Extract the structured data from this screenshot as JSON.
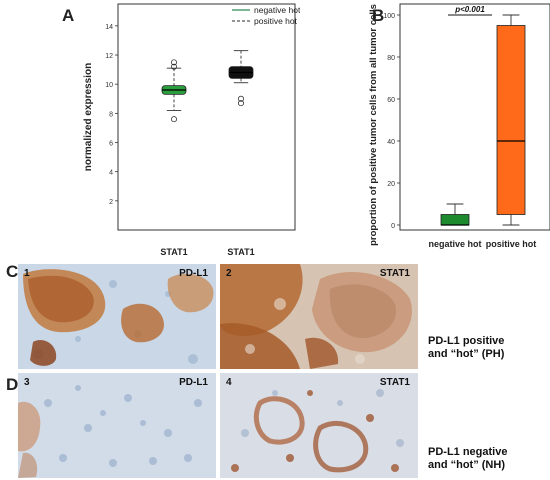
{
  "panels": {
    "a": {
      "letter": "A"
    },
    "b": {
      "letter": "B"
    },
    "c": {
      "letter": "C"
    },
    "d": {
      "letter": "D"
    }
  },
  "chart_data": [
    {
      "type": "box",
      "panel": "A",
      "ylabel": "normalized expression",
      "ylim": [
        0,
        15.5
      ],
      "yticks": [
        2,
        4,
        6,
        8,
        10,
        12,
        14
      ],
      "categories": [
        "STAT1",
        "STAT1"
      ],
      "legend": {
        "placement": "top-right",
        "entries": [
          {
            "name": "negative hot",
            "color": "#2e8b57",
            "style": "solid"
          },
          {
            "name": "positive hot",
            "color": "#555555",
            "style": "dashed"
          }
        ]
      },
      "boxes": [
        {
          "category": "STAT1",
          "color": "#2a9d3c",
          "whisker_low": 8.2,
          "q1": 9.3,
          "median": 9.6,
          "q3": 9.9,
          "whisker_high": 11.1,
          "outliers": [
            7.6,
            11.2,
            11.5
          ]
        },
        {
          "category": "STAT1",
          "color": "#111111",
          "whisker_low": 10.1,
          "q1": 10.4,
          "median": 10.8,
          "q3": 11.2,
          "whisker_high": 12.3,
          "outliers": [
            8.7,
            9.0
          ]
        }
      ]
    },
    {
      "type": "box",
      "panel": "B",
      "ylabel": "proportion  of positive tumor cells from all tumor cells",
      "ylim": [
        0,
        100
      ],
      "yticks": [
        0,
        20,
        40,
        60,
        80,
        100
      ],
      "categories": [
        "negative hot",
        "positive hot"
      ],
      "annotation": "p<0.001",
      "boxes": [
        {
          "category": "negative hot",
          "color": "#1d8a2e",
          "whisker_low": 0,
          "q1": 0,
          "median": 0,
          "q3": 5,
          "whisker_high": 10
        },
        {
          "category": "positive hot",
          "color": "#ff6a1a",
          "whisker_low": 0,
          "q1": 5,
          "median": 40,
          "q3": 95,
          "whisker_high": 100
        }
      ]
    }
  ],
  "images": {
    "c1": {
      "num": "1",
      "tag": "PD-L1"
    },
    "c2": {
      "num": "2",
      "tag": "STAT1"
    },
    "d3": {
      "num": "3",
      "tag": "PD-L1"
    },
    "d4": {
      "num": "4",
      "tag": "STAT1"
    }
  },
  "captions": {
    "ph_line1": "PD-L1 positive",
    "ph_line2": "and “hot” (PH)",
    "nh_line1": "PD-L1 negative",
    "nh_line2": "and “hot” (NH)"
  }
}
